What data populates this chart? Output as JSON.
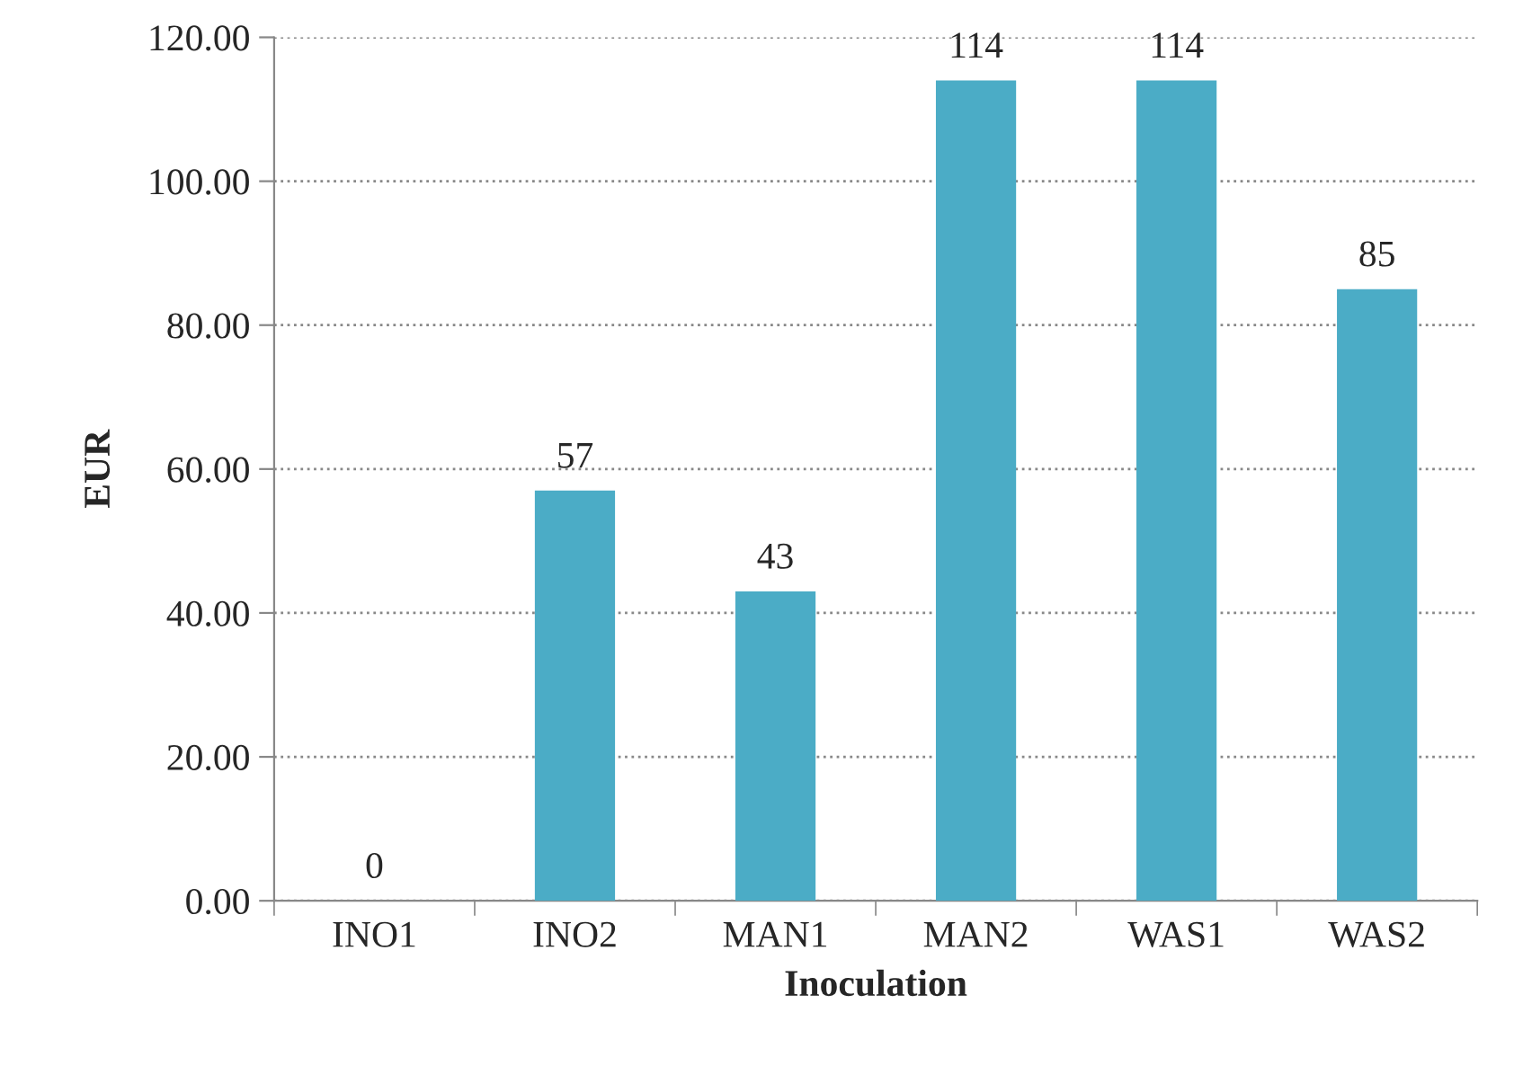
{
  "chart_data": {
    "type": "bar",
    "xlabel": "Inoculation",
    "ylabel": "EUR",
    "categories": [
      "INO1",
      "INO2",
      "MAN1",
      "MAN2",
      "WAS1",
      "WAS2"
    ],
    "values": [
      0,
      57,
      43,
      114,
      114,
      85
    ],
    "color": "#4bacc6",
    "ylim": [
      0,
      120
    ],
    "yticks": [
      {
        "value": 0,
        "label": "0.00"
      },
      {
        "value": 20,
        "label": "20.00"
      },
      {
        "value": 40,
        "label": "40.00"
      },
      {
        "value": 60,
        "label": "60.00"
      },
      {
        "value": 80,
        "label": "80.00"
      },
      {
        "value": 100,
        "label": "100.00"
      },
      {
        "value": 120,
        "label": "120.00"
      }
    ],
    "grid": "y",
    "data_labels": true
  }
}
